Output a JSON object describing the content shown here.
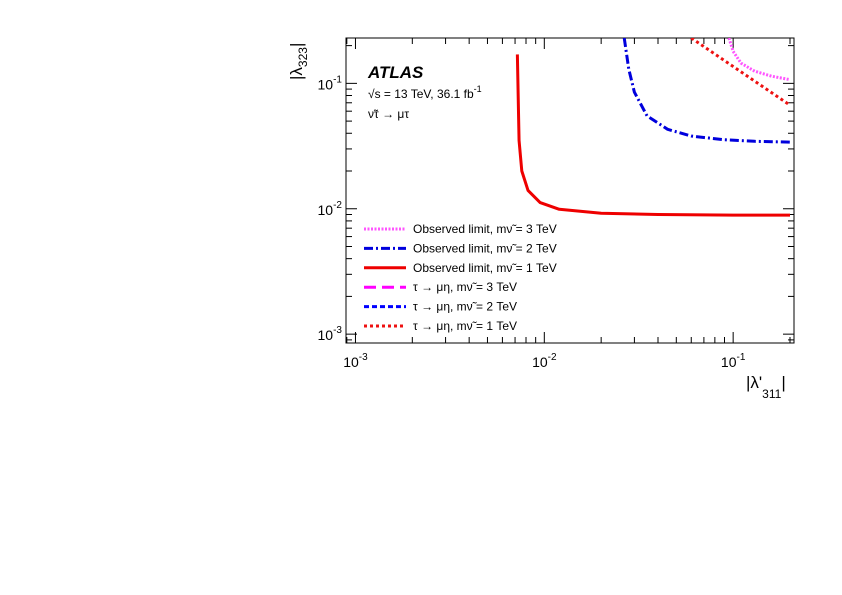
{
  "chart_data": {
    "type": "line",
    "title": "",
    "xlabel": "|λ'311|",
    "ylabel": "|λ323|",
    "xscale": "log",
    "yscale": "log",
    "xlim": [
      0.000891,
      0.21
    ],
    "ylim": [
      0.00085,
      0.23
    ],
    "x_ticks": [
      "10-3",
      "10-2",
      "10-1"
    ],
    "y_ticks": [
      "10-3",
      "10-2",
      "10-1"
    ],
    "grid": false,
    "legend_position": "center-left",
    "annotations": {
      "experiment": "ATLAS",
      "energy": "√s = 13 TeV, 36.1 fb-1",
      "process": "ν̃τ → μτ"
    },
    "series": [
      {
        "name": "Observed limit, mν̃ = 3 TeV",
        "color": "#ff55ff",
        "style": "dotted-thick",
        "x": [
          0.095,
          0.1,
          0.11,
          0.13,
          0.16,
          0.2
        ],
        "y": [
          0.23,
          0.18,
          0.145,
          0.125,
          0.114,
          0.107
        ]
      },
      {
        "name": "Observed limit, mν̃ = 2 TeV",
        "color": "#0000dd",
        "style": "dash-dot",
        "x": [
          0.0265,
          0.028,
          0.03,
          0.035,
          0.045,
          0.06,
          0.09,
          0.13,
          0.2
        ],
        "y": [
          0.23,
          0.13,
          0.085,
          0.055,
          0.043,
          0.038,
          0.0355,
          0.0345,
          0.034
        ]
      },
      {
        "name": "Observed limit, mν̃ = 1 TeV",
        "color": "#ee0000",
        "style": "solid",
        "x": [
          0.0072,
          0.00735,
          0.0076,
          0.0082,
          0.0095,
          0.012,
          0.02,
          0.04,
          0.1,
          0.2
        ],
        "y": [
          0.17,
          0.035,
          0.02,
          0.014,
          0.0112,
          0.0099,
          0.0092,
          0.009,
          0.0089,
          0.0089
        ]
      },
      {
        "name": "τ → μη, mν̃ = 3 TeV",
        "color": "#ff00ff",
        "style": "long-dash",
        "x": [],
        "y": []
      },
      {
        "name": "τ → μη, mν̃ = 2 TeV",
        "color": "#0000ff",
        "style": "dashed",
        "x": [],
        "y": []
      },
      {
        "name": "τ → μη, mν̃ = 1 TeV",
        "color": "#ee1111",
        "style": "dotted",
        "x": [
          0.06,
          0.2
        ],
        "y": [
          0.23,
          0.067
        ]
      }
    ]
  }
}
